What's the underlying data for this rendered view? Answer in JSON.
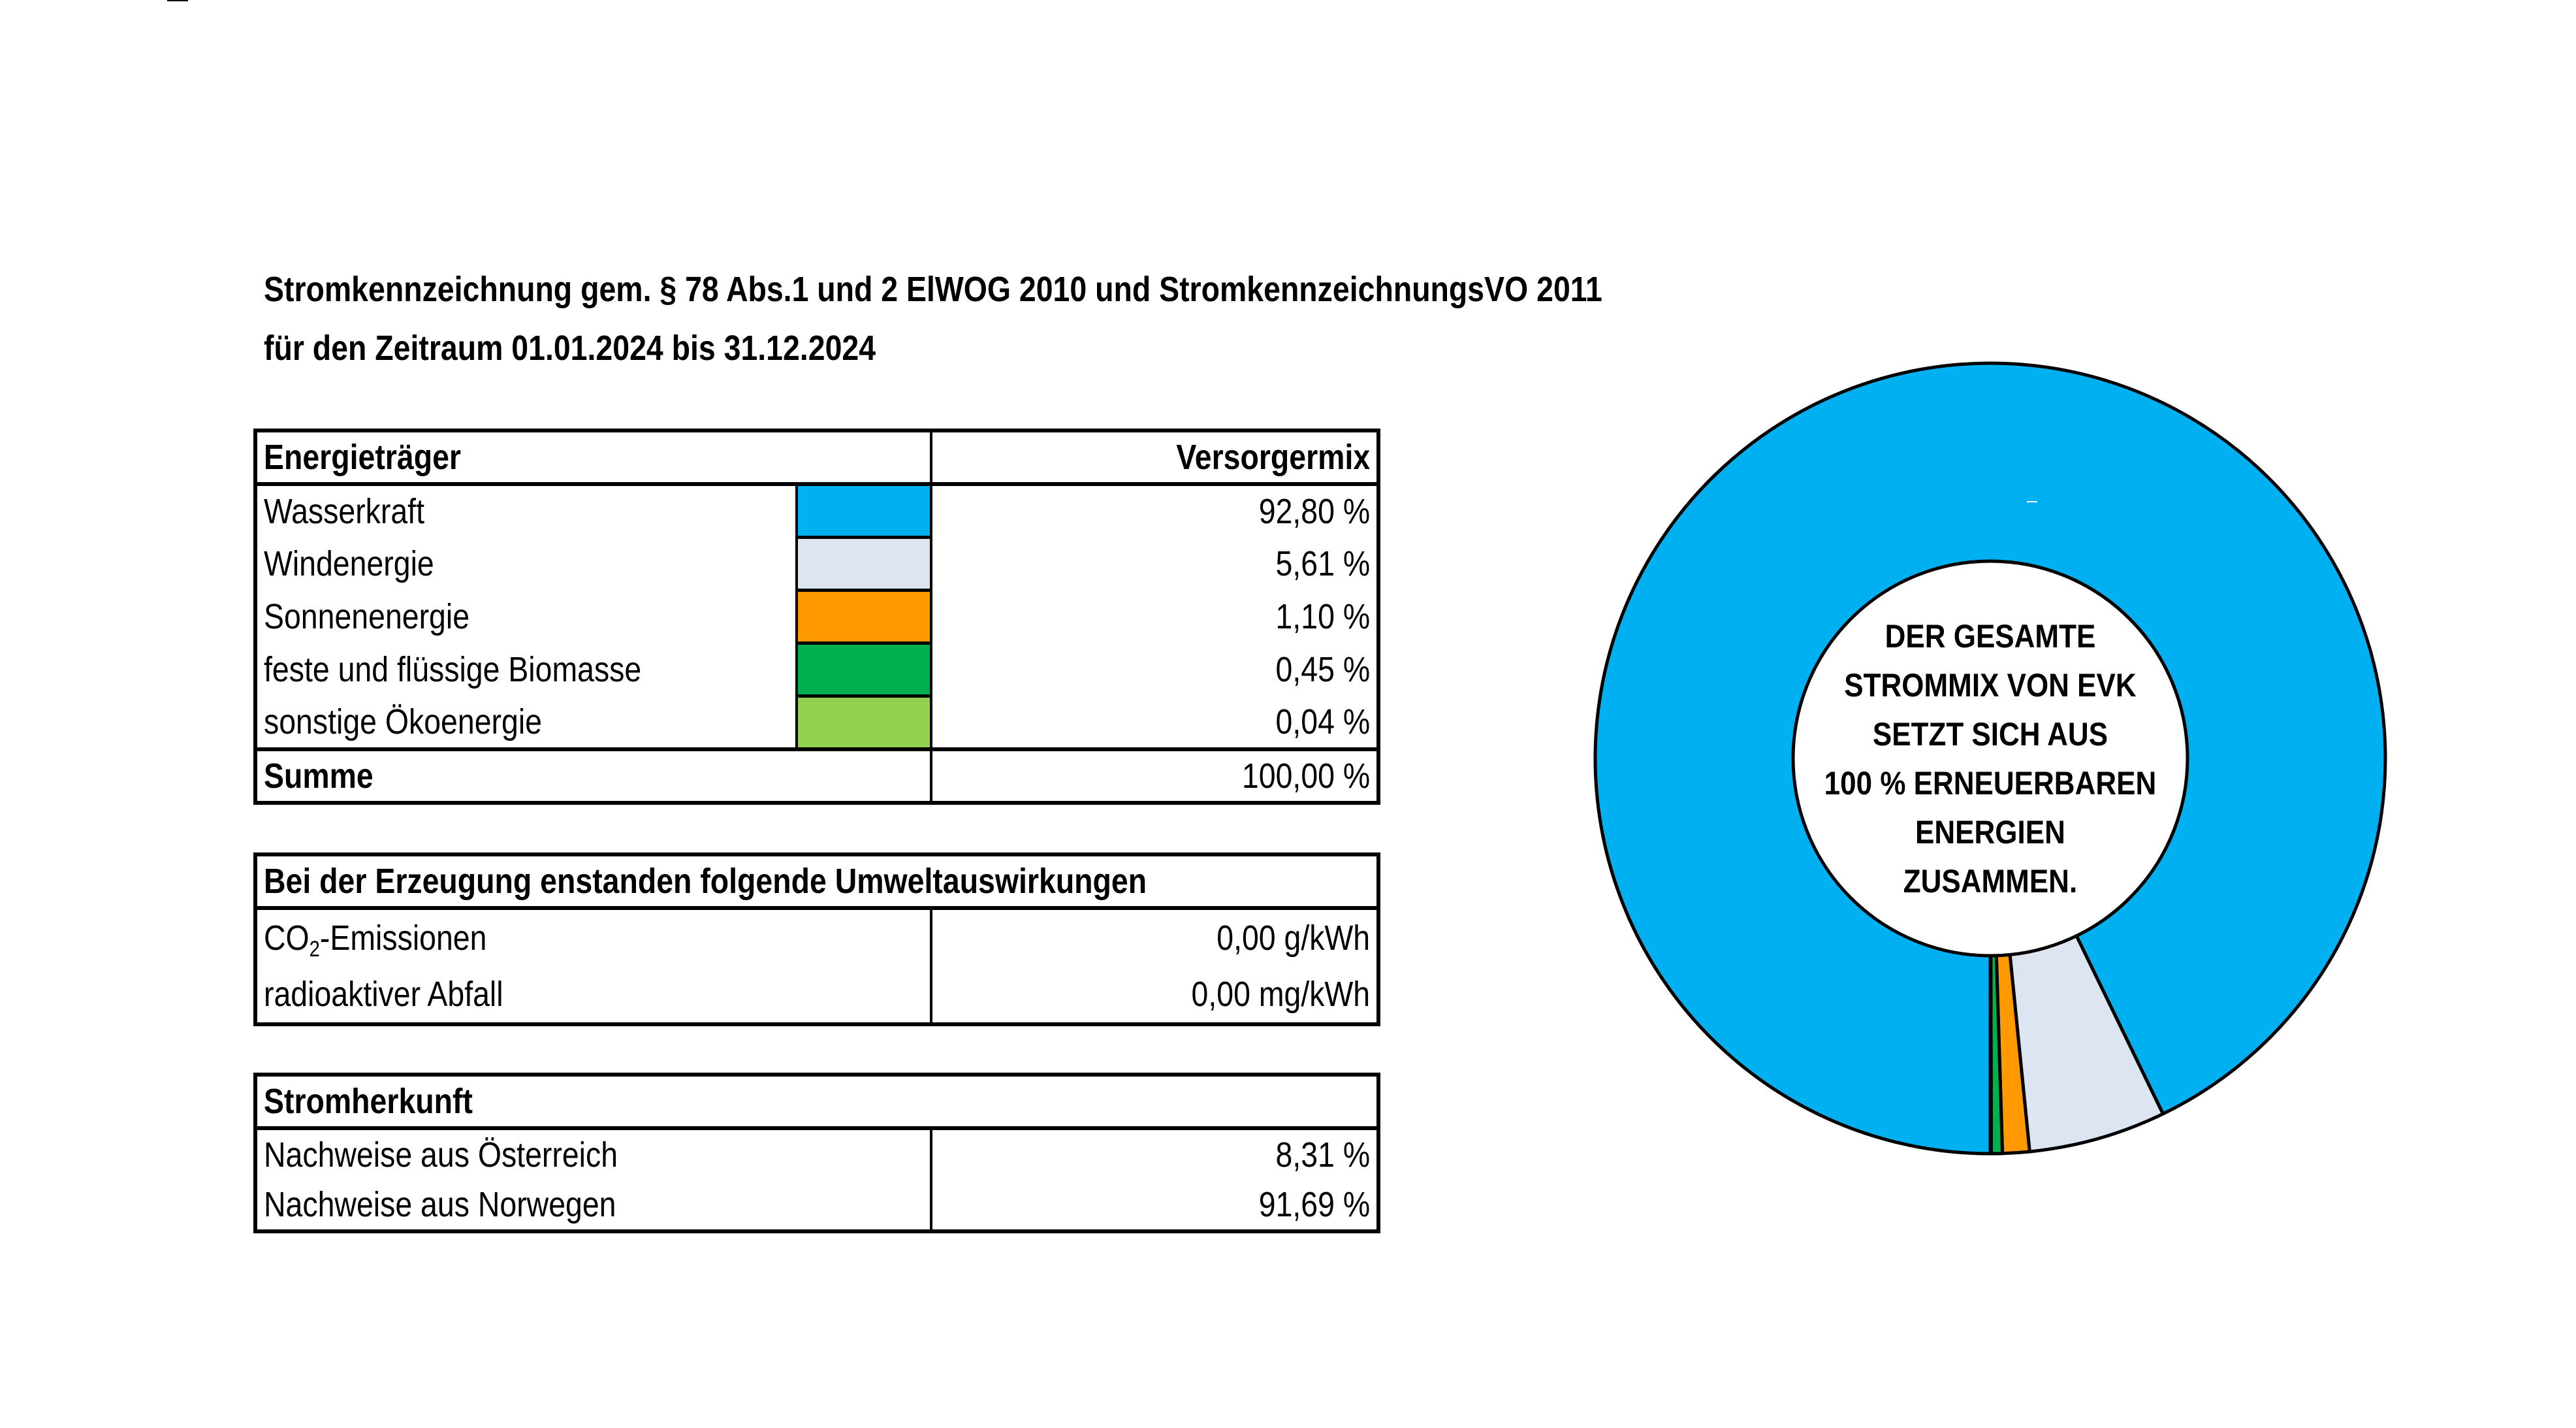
{
  "title": {
    "line1": "Stromkennzeichnung gem. § 78 Abs.1 und 2 ElWOG 2010 und StromkennzeichnungsVO 2011",
    "line2": "für den Zeitraum 01.01.2024 bis 31.12.2024"
  },
  "energy_table": {
    "header_label": "Energieträger",
    "header_value": "Versorgermix",
    "rows": [
      {
        "label": "Wasserkraft",
        "value": "92,80 %",
        "color": "#00B0F0"
      },
      {
        "label": "Windenergie",
        "value": "5,61 %",
        "color": "#DEE5F2"
      },
      {
        "label": "Sonnenenergie",
        "value": "1,10 %",
        "color": "#FF9900"
      },
      {
        "label": "feste und flüssige Biomasse",
        "value": "0,45 %",
        "color": "#00B050"
      },
      {
        "label": "sonstige Ökoenergie",
        "value": "0,04 %",
        "color": "#92D050"
      }
    ],
    "sum_label": "Summe",
    "sum_value": "100,00 %"
  },
  "environment_table": {
    "header": "Bei der Erzeugung enstanden folgende Umweltauswirkungen",
    "co2_prefix": "CO",
    "co2_sub": "2",
    "co2_suffix": "-Emissionen",
    "co2_value": "0,00 g/kWh",
    "waste_label": "radioaktiver Abfall",
    "waste_value": "0,00 mg/kWh"
  },
  "origin_table": {
    "header": "Stromherkunft",
    "rows": [
      {
        "label": "Nachweise aus Österreich",
        "value": "8,31 %"
      },
      {
        "label": "Nachweise aus Norwegen",
        "value": "91,69 %"
      }
    ]
  },
  "donut": {
    "center_lines": [
      "DER GESAMTE",
      "STROMMIX VON EVK",
      "SETZT SICH AUS",
      "100 % ERNEUERBAREN",
      "ENERGIEN",
      "ZUSAMMEN."
    ]
  },
  "chart_data": {
    "type": "pie",
    "variant": "donut",
    "title": "",
    "categories": [
      "Wasserkraft",
      "Windenergie",
      "Sonnenenergie",
      "feste und flüssige Biomasse",
      "sonstige Ökoenergie"
    ],
    "values": [
      92.8,
      5.61,
      1.1,
      0.45,
      0.04
    ],
    "colors": [
      "#00B0F0",
      "#DEE5F2",
      "#FF9900",
      "#00B050",
      "#92D050"
    ],
    "start_angle_deg": 180,
    "direction": "clockwise",
    "center_label": "DER GESAMTE STROMMIX VON EVK SETZT SICH AUS 100 % ERNEUERBAREN ENERGIEN ZUSAMMEN.",
    "legend": "none (table swatches serve as legend)"
  }
}
